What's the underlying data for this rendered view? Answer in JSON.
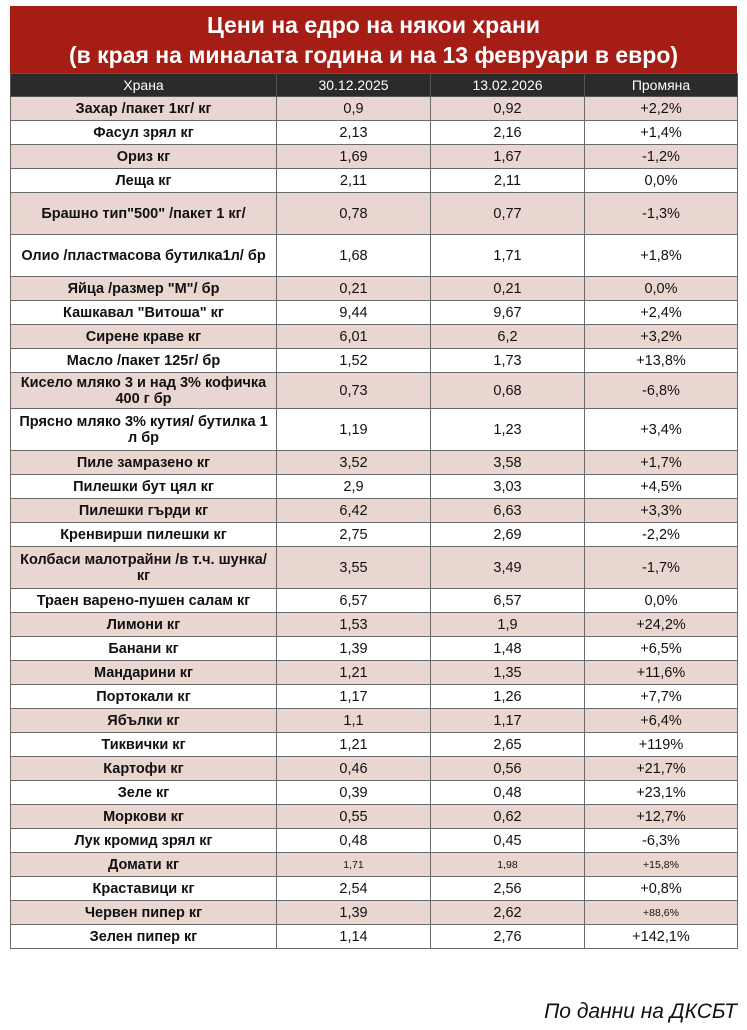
{
  "title": {
    "line1": "Цени на едро на някои храни",
    "line2": "(в края на миналата година и на 13 февруари в евро)"
  },
  "columns": [
    "Храна",
    "30.12.2025",
    "13.02.2026",
    "Промяна"
  ],
  "rows": [
    {
      "food": "Захар /пакет 1кг/ кг",
      "p1": "0,9",
      "p2": "0,92",
      "change": "+2,2%"
    },
    {
      "food": "Фасул зрял кг",
      "p1": "2,13",
      "p2": "2,16",
      "change": "+1,4%"
    },
    {
      "food": "Ориз кг",
      "p1": "1,69",
      "p2": "1,67",
      "change": "-1,2%"
    },
    {
      "food": "Леща кг",
      "p1": "2,11",
      "p2": "2,11",
      "change": "0,0%"
    },
    {
      "food": "Брашно тип\"500\" /пакет 1 кг/",
      "p1": "0,78",
      "p2": "0,77",
      "change": "-1,3%"
    },
    {
      "food": "Олио /пластмасова бутилка1л/ бр",
      "p1": "1,68",
      "p2": "1,71",
      "change": "+1,8%"
    },
    {
      "food": "Яйца /размер \"М\"/ бр",
      "p1": "0,21",
      "p2": "0,21",
      "change": "0,0%"
    },
    {
      "food": "Кашкавал \"Витоша\" кг",
      "p1": "9,44",
      "p2": "9,67",
      "change": "+2,4%"
    },
    {
      "food": "Сирене краве кг",
      "p1": "6,01",
      "p2": "6,2",
      "change": "+3,2%"
    },
    {
      "food": "Масло /пакет 125г/ бр",
      "p1": "1,52",
      "p2": "1,73",
      "change": "+13,8%"
    },
    {
      "food": "Кисело мляко 3 и над 3% кофичка 400 г бр",
      "p1": "0,73",
      "p2": "0,68",
      "change": "-6,8%"
    },
    {
      "food": "Прясно мляко 3% кутия/ бутилка 1 л бр",
      "p1": "1,19",
      "p2": "1,23",
      "change": "+3,4%"
    },
    {
      "food": "Пиле замразено кг",
      "p1": "3,52",
      "p2": "3,58",
      "change": "+1,7%"
    },
    {
      "food": "Пилешки бут цял кг",
      "p1": "2,9",
      "p2": "3,03",
      "change": "+4,5%"
    },
    {
      "food": "Пилешки гърди кг",
      "p1": "6,42",
      "p2": "6,63",
      "change": "+3,3%"
    },
    {
      "food": "Кренвирши пилешки кг",
      "p1": "2,75",
      "p2": "2,69",
      "change": "-2,2%"
    },
    {
      "food": "Колбаси малотрайни /в т.ч. шунка/ кг",
      "p1": "3,55",
      "p2": "3,49",
      "change": "-1,7%"
    },
    {
      "food": "Траен варено-пушен салам кг",
      "p1": "6,57",
      "p2": "6,57",
      "change": "0,0%"
    },
    {
      "food": "Лимони кг",
      "p1": "1,53",
      "p2": "1,9",
      "change": "+24,2%"
    },
    {
      "food": "Банани кг",
      "p1": "1,39",
      "p2": "1,48",
      "change": "+6,5%"
    },
    {
      "food": "Мандарини кг",
      "p1": "1,21",
      "p2": "1,35",
      "change": "+11,6%"
    },
    {
      "food": "Портокали кг",
      "p1": "1,17",
      "p2": "1,26",
      "change": "+7,7%"
    },
    {
      "food": "Ябълки кг",
      "p1": "1,1",
      "p2": "1,17",
      "change": "+6,4%"
    },
    {
      "food": "Тиквички кг",
      "p1": "1,21",
      "p2": "2,65",
      "change": "+119%"
    },
    {
      "food": "Картофи кг",
      "p1": "0,46",
      "p2": "0,56",
      "change": "+21,7%"
    },
    {
      "food": "Зеле кг",
      "p1": "0,39",
      "p2": "0,48",
      "change": "+23,1%"
    },
    {
      "food": "Моркови кг",
      "p1": "0,55",
      "p2": "0,62",
      "change": "+12,7%"
    },
    {
      "food": "Лук кромид зрял кг",
      "p1": "0,48",
      "p2": "0,45",
      "change": "-6,3%"
    },
    {
      "food": "Домати кг",
      "p1": "1,71",
      "p2": "1,98",
      "change": "+15,8%",
      "small": true
    },
    {
      "food": "Краставици кг",
      "p1": "2,54",
      "p2": "2,56",
      "change": "+0,8%"
    },
    {
      "food": "Червен пипер кг",
      "p1": "1,39",
      "p2": "2,62",
      "change": "+88,6%",
      "small_change": true
    },
    {
      "food": "Зелен пипер кг",
      "p1": "1,14",
      "p2": "2,76",
      "change": "+142,1%"
    }
  ],
  "source": "По данни на ДКСБТ"
}
